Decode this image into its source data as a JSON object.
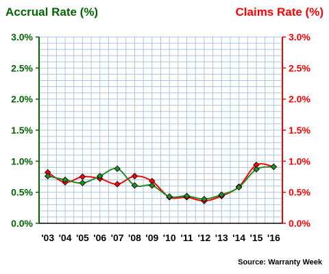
{
  "chart_data": {
    "type": "line",
    "title_left": "Accrual Rate (%)",
    "title_right": "Claims Rate (%)",
    "source": "Source: Warranty Week",
    "categories": [
      "'03",
      "'04",
      "'05",
      "'06",
      "'07",
      "'08",
      "'09",
      "'10",
      "'11",
      "'12",
      "'13",
      "'14",
      "'15",
      "'16"
    ],
    "y_ticks_left": [
      "0.0%",
      "0.5%",
      "1.0%",
      "1.5%",
      "2.0%",
      "2.5%",
      "3.0%"
    ],
    "y_ticks_right": [
      "0.0%",
      "0.5%",
      "1.0%",
      "1.5%",
      "2.0%",
      "2.5%",
      "3.0%"
    ],
    "ylim": [
      0,
      3.0
    ],
    "grid": true,
    "series": [
      {
        "name": "Accrual Rate (%)",
        "color": "#228B22",
        "axis": "left",
        "values": [
          0.76,
          0.7,
          0.65,
          0.76,
          0.88,
          0.61,
          0.61,
          0.43,
          0.44,
          0.39,
          0.46,
          0.58,
          0.87,
          0.91
        ]
      },
      {
        "name": "Claims Rate (%)",
        "color": "#FF0000",
        "axis": "right",
        "values": [
          0.82,
          0.66,
          0.75,
          0.72,
          0.63,
          0.76,
          0.68,
          0.42,
          0.42,
          0.36,
          0.44,
          0.59,
          0.94,
          0.91
        ]
      }
    ],
    "colors": {
      "left_axis": "#006400",
      "right_axis": "#FF0000",
      "grid": "#A9C4E0",
      "background": "#FFFFFF"
    }
  }
}
